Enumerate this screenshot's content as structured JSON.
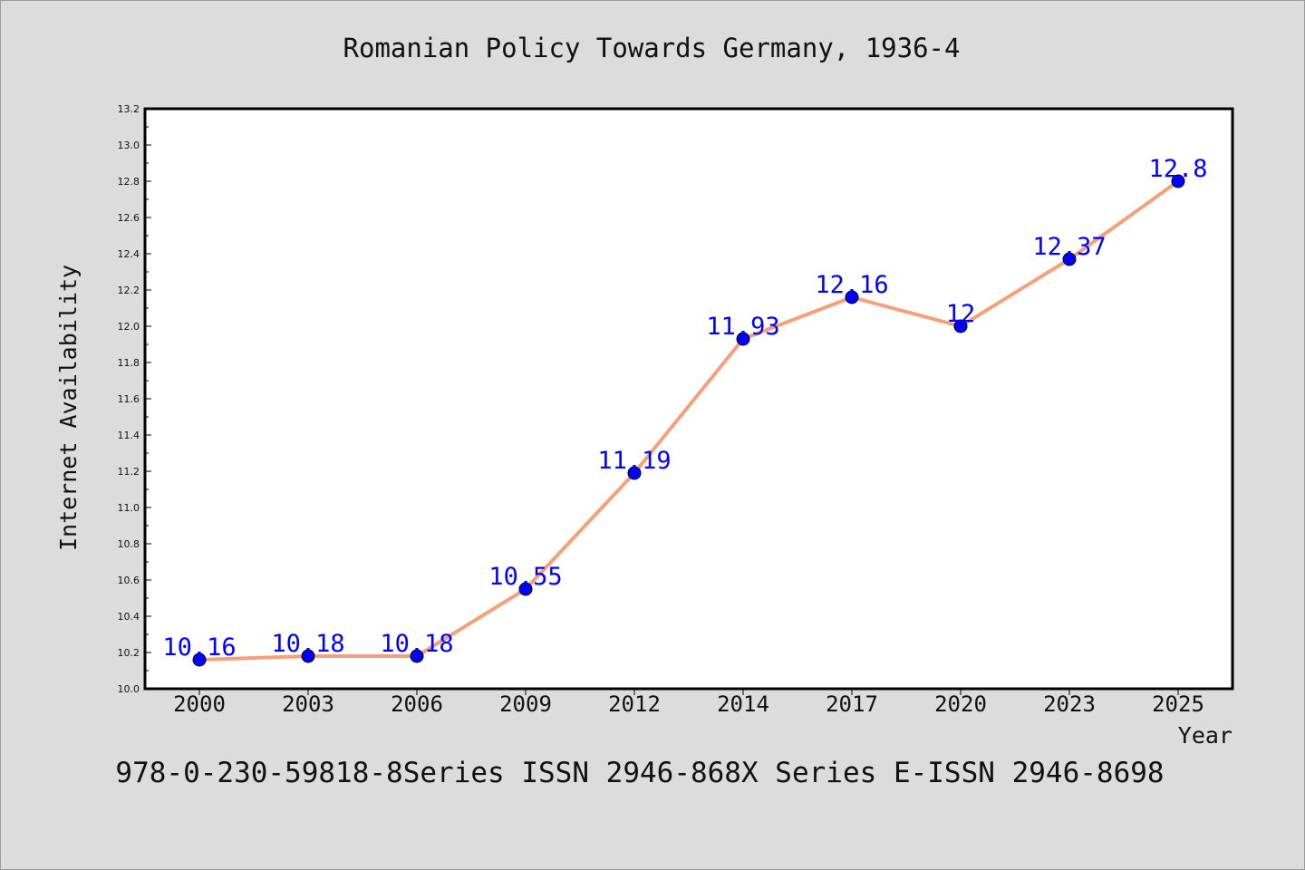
{
  "chart_data": {
    "type": "line",
    "title": "Romanian Policy Towards Germany, 1936-4",
    "xlabel": "Year",
    "ylabel": "Internet Availability",
    "categories": [
      "2000",
      "2003",
      "2006",
      "2009",
      "2012",
      "2014",
      "2017",
      "2020",
      "2023",
      "2025"
    ],
    "series": [
      {
        "values": [
          10.16,
          10.18,
          10.18,
          10.55,
          11.19,
          11.93,
          12.16,
          12,
          12.37,
          12.8
        ],
        "data_labels": [
          "10.16",
          "10.18",
          "10.18",
          "10.55",
          "11.19",
          "11.93",
          "12.16",
          "12",
          "12.37",
          "12.8"
        ],
        "line_color": "#f4a07a",
        "marker_color": "#0000ff"
      }
    ],
    "ylim": [
      10.0,
      13.2
    ],
    "yticks": [
      "10.0",
      "10.2",
      "10.4",
      "10.6",
      "10.8",
      "11.0",
      "11.2",
      "11.4",
      "11.6",
      "11.8",
      "12.0",
      "12.2",
      "12.4",
      "12.6",
      "12.8",
      "13.0",
      "13.2"
    ],
    "grid": false,
    "legend": "none"
  },
  "footer": {
    "text": "978-0-230-59818-8Series ISSN 2946-868X Series E-ISSN 2946-8698"
  },
  "colors": {
    "background": "#dcdcdc",
    "plot_background": "#ffffff",
    "line": "#f4a07a",
    "marker": "#0000ff",
    "data_label": "#0000ff"
  }
}
